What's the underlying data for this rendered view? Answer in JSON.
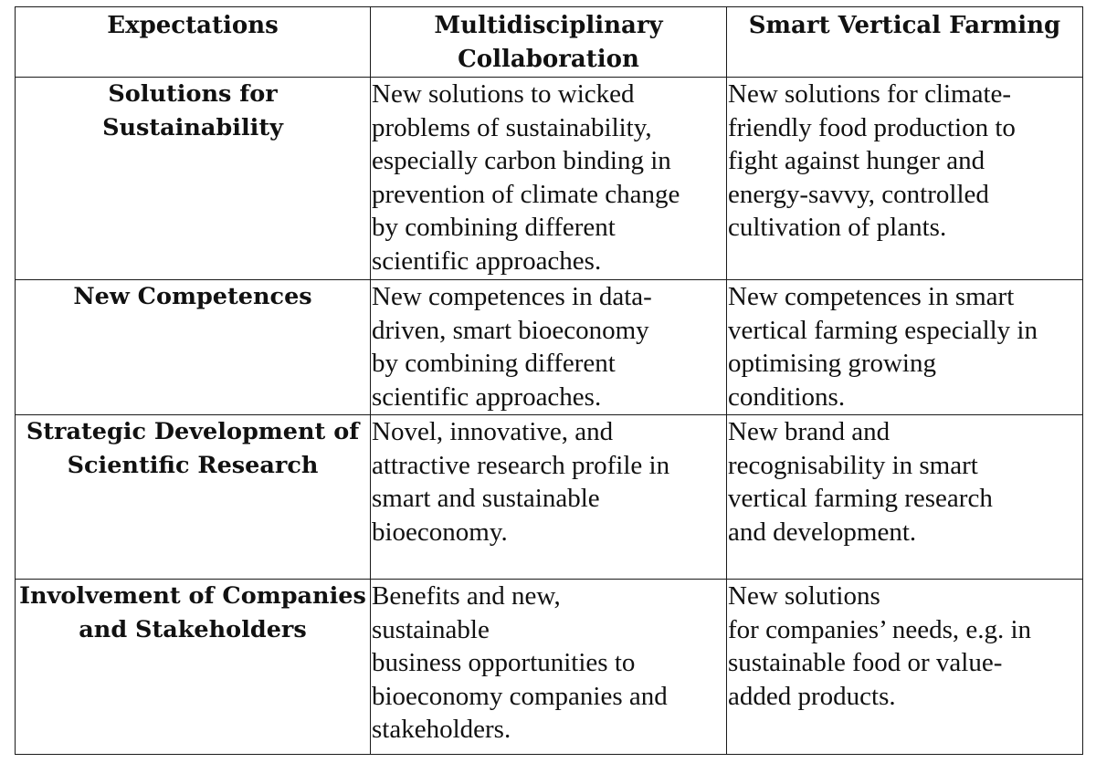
{
  "table": {
    "headers": [
      [
        "Expectations"
      ],
      [
        "Multidisciplinary",
        "Collaboration"
      ],
      [
        "Smart Vertical Farming"
      ]
    ],
    "rows": [
      {
        "label": [
          "Solutions for",
          "Sustainability"
        ],
        "multidisciplinary": [
          "New solutions to wicked",
          "problems of sustainability,",
          "especially carbon binding in",
          "prevention of climate change",
          "by combining different",
          "scientific approaches."
        ],
        "vertical_farming": [
          "New solutions for climate-",
          "friendly food production to",
          "fight against hunger and",
          "energy-savvy, controlled",
          "cultivation of plants."
        ]
      },
      {
        "label": [
          "New Competences"
        ],
        "multidisciplinary": [
          "New competences in data-",
          "driven, smart bioeconomy",
          "by combining different",
          "scientific approaches."
        ],
        "vertical_farming": [
          "New competences in smart",
          "vertical farming especially in",
          "optimising growing",
          "conditions."
        ]
      },
      {
        "label": [
          "Strategic Development of",
          "Scientific Research"
        ],
        "multidisciplinary": [
          "Novel, innovative, and",
          "attractive research profile in",
          "smart and sustainable",
          "bioeconomy."
        ],
        "vertical_farming": [
          "New brand and",
          "recognisability in smart",
          "vertical farming research",
          "and development."
        ]
      },
      {
        "label": [
          "Involvement of Companies",
          "and Stakeholders"
        ],
        "multidisciplinary": [
          "Benefits and new,",
          "sustainable",
          "business opportunities to",
          "bioeconomy companies and",
          "stakeholders."
        ],
        "vertical_farming": [
          "New solutions",
          "for companies’ needs, e.g. in",
          "sustainable food or value-",
          "added products."
        ]
      }
    ]
  }
}
